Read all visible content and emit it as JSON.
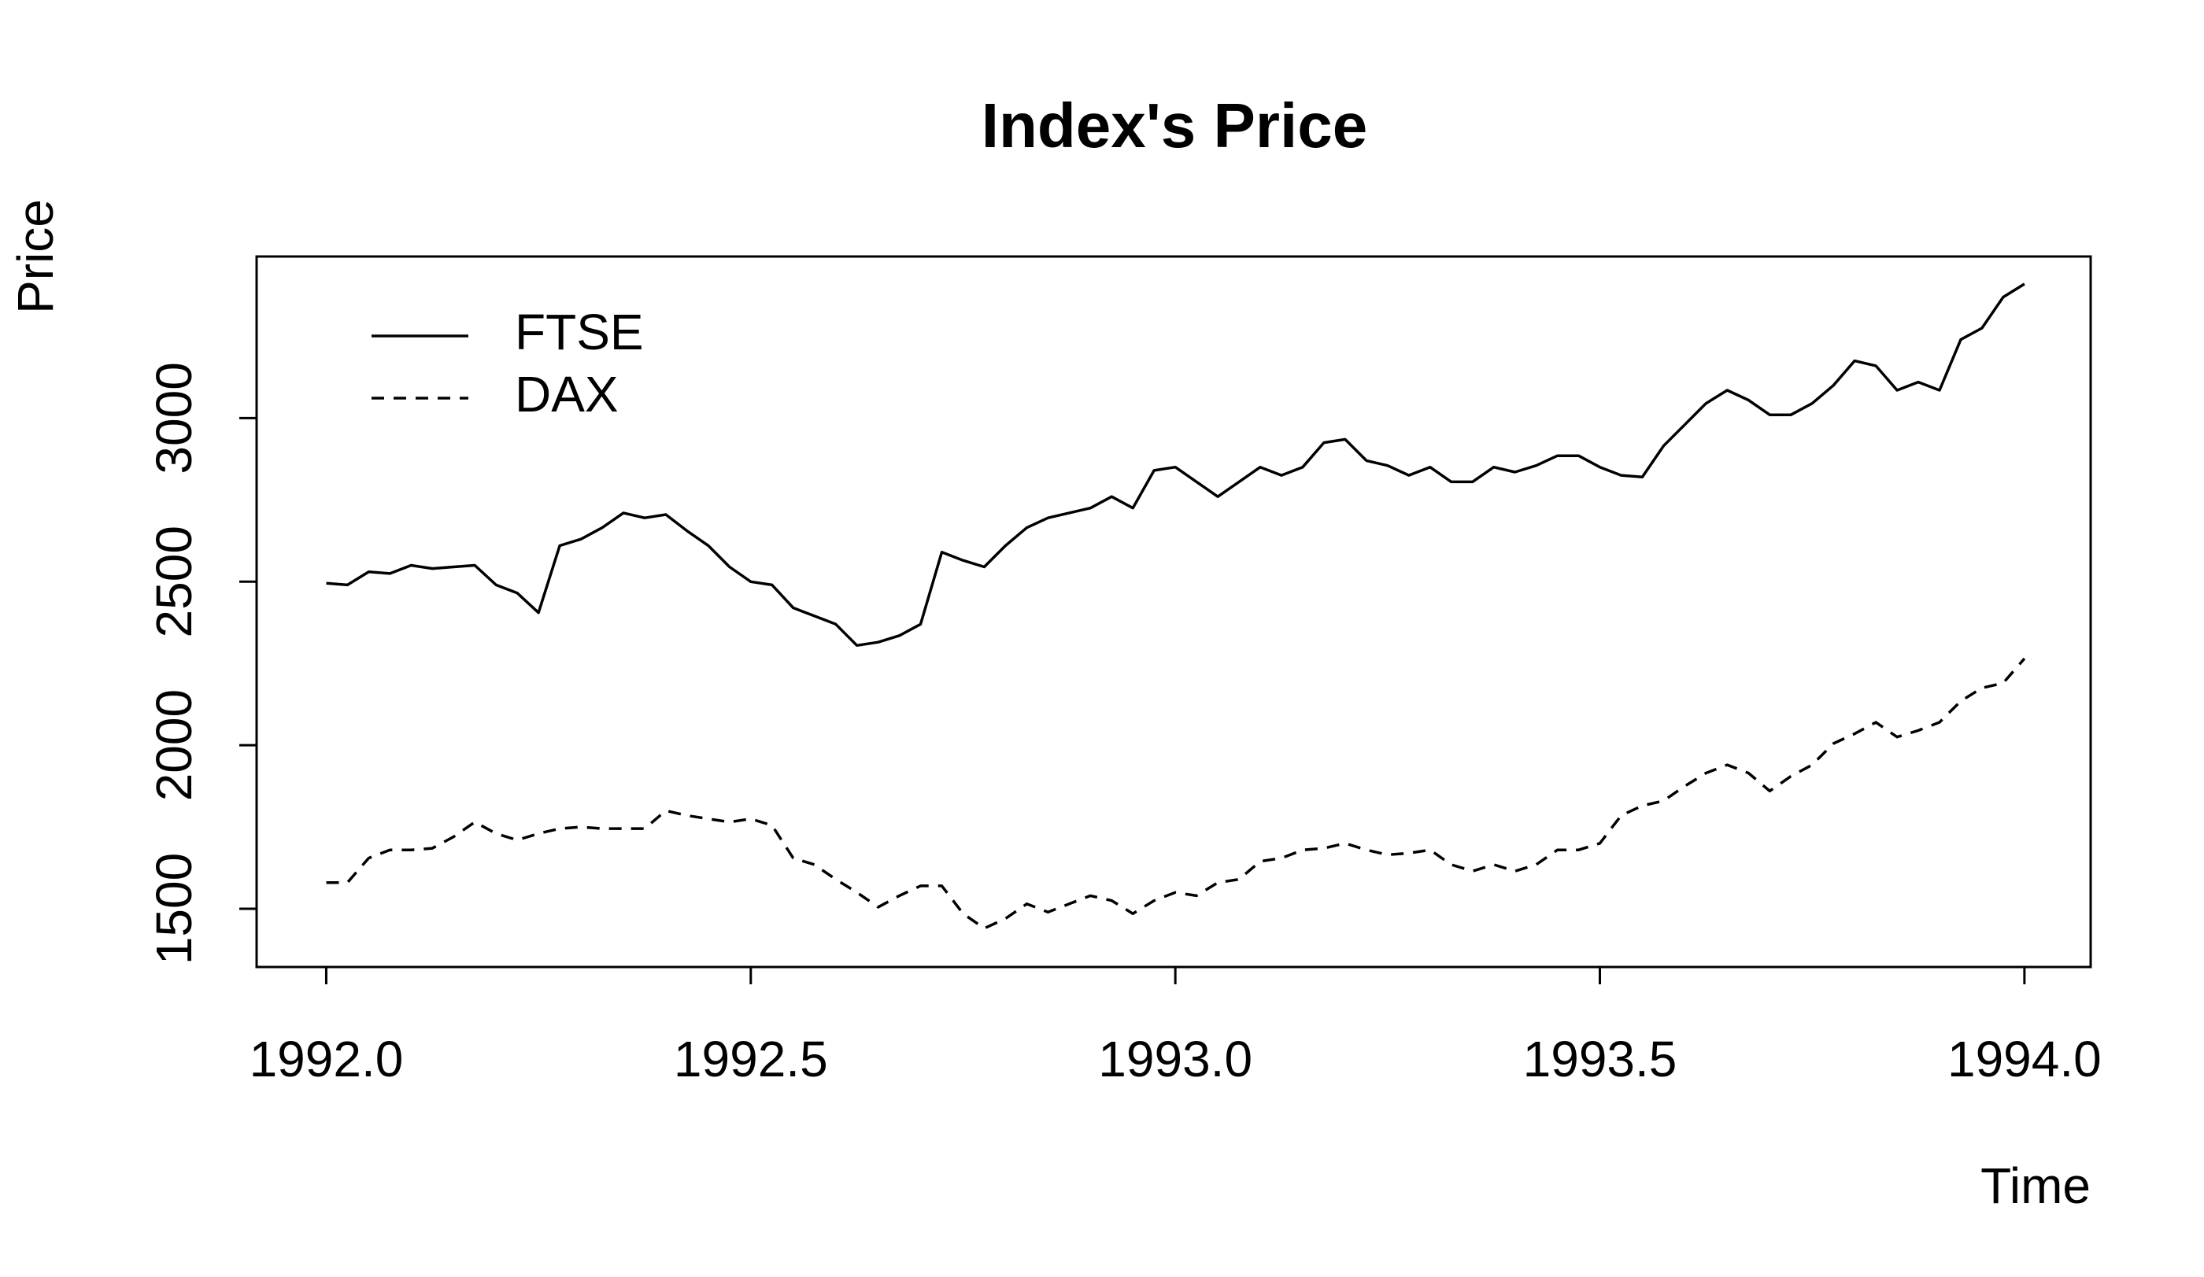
{
  "chart_data": {
    "type": "line",
    "title": "Index's Price",
    "x_label": "Time",
    "y_label": "Price",
    "x": [
      1992.0,
      1992.025,
      1992.05,
      1992.075,
      1992.1,
      1992.125,
      1992.15,
      1992.175,
      1992.2,
      1992.225,
      1992.25,
      1992.275,
      1992.3,
      1992.325,
      1992.35,
      1992.375,
      1992.4,
      1992.425,
      1992.45,
      1992.475,
      1992.5,
      1992.525,
      1992.55,
      1992.575,
      1992.6,
      1992.625,
      1992.65,
      1992.675,
      1992.7,
      1992.725,
      1992.75,
      1992.775,
      1992.8,
      1992.825,
      1992.85,
      1992.875,
      1992.9,
      1992.925,
      1992.95,
      1992.975,
      1993.0,
      1993.025,
      1993.05,
      1993.075,
      1993.1,
      1993.125,
      1993.15,
      1993.175,
      1993.2,
      1993.225,
      1993.25,
      1993.275,
      1993.3,
      1993.325,
      1993.35,
      1993.375,
      1993.4,
      1993.425,
      1993.45,
      1993.475,
      1993.5,
      1993.525,
      1993.55,
      1993.575,
      1993.6,
      1993.625,
      1993.65,
      1993.675,
      1993.7,
      1993.725,
      1993.75,
      1993.775,
      1993.8,
      1993.825,
      1993.85,
      1993.875,
      1993.9,
      1993.925,
      1993.95,
      1993.975,
      1994.0
    ],
    "series": [
      {
        "name": "FTSE",
        "color": "#000000",
        "linestyle": "solid",
        "values": [
          2495,
          2490,
          2530,
          2525,
          2550,
          2540,
          2545,
          2550,
          2490,
          2465,
          2405,
          2610,
          2630,
          2665,
          2710,
          2695,
          2705,
          2655,
          2610,
          2545,
          2500,
          2490,
          2420,
          2395,
          2370,
          2305,
          2315,
          2335,
          2370,
          2590,
          2565,
          2545,
          2610,
          2665,
          2695,
          2710,
          2725,
          2760,
          2725,
          2840,
          2850,
          2805,
          2760,
          2805,
          2850,
          2825,
          2850,
          2925,
          2935,
          2870,
          2855,
          2825,
          2850,
          2805,
          2805,
          2850,
          2835,
          2855,
          2885,
          2885,
          2850,
          2825,
          2820,
          2915,
          2980,
          3045,
          3085,
          3055,
          3010,
          3010,
          3045,
          3100,
          3175,
          3160,
          3085,
          3110,
          3085,
          3240,
          3275,
          3370,
          3410
        ]
      },
      {
        "name": "DAX",
        "color": "#000000",
        "linestyle": "dashed",
        "values": [
          1580,
          1580,
          1655,
          1680,
          1680,
          1685,
          1720,
          1765,
          1730,
          1710,
          1730,
          1745,
          1750,
          1745,
          1745,
          1745,
          1800,
          1785,
          1775,
          1765,
          1775,
          1755,
          1655,
          1635,
          1590,
          1550,
          1505,
          1540,
          1570,
          1570,
          1485,
          1440,
          1470,
          1515,
          1490,
          1515,
          1540,
          1525,
          1485,
          1525,
          1550,
          1540,
          1580,
          1590,
          1645,
          1655,
          1680,
          1685,
          1700,
          1680,
          1665,
          1670,
          1680,
          1635,
          1615,
          1635,
          1615,
          1635,
          1680,
          1680,
          1700,
          1785,
          1815,
          1830,
          1875,
          1915,
          1940,
          1915,
          1860,
          1905,
          1940,
          2005,
          2035,
          2070,
          2025,
          2045,
          2070,
          2135,
          2175,
          2190,
          2265
        ]
      }
    ],
    "xlim": [
      1991.918,
      1994.078
    ],
    "ylim": [
      1322,
      3494
    ],
    "xticks": [
      {
        "value": 1992,
        "label": "1992.0"
      },
      1992.5,
      {
        "value": 1993,
        "label": "1993.0"
      },
      1993.5,
      {
        "value": 1994,
        "label": "1994.0"
      }
    ],
    "yticks": [
      1500,
      2000,
      2500,
      3000
    ],
    "legend": "top-left",
    "grid": false
  }
}
